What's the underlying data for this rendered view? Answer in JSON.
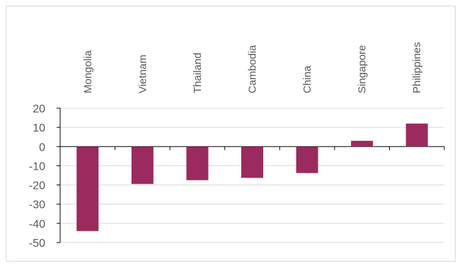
{
  "chart_data": {
    "type": "bar",
    "categories": [
      "Mongolia",
      "Vietnam",
      "Thailand",
      "Cambodia",
      "China",
      "Singapore",
      "Philippines"
    ],
    "values": [
      -44,
      -19.5,
      -17.5,
      -16.3,
      -13.8,
      3,
      12
    ],
    "ylim": [
      -50,
      20
    ],
    "yticks": [
      20,
      10,
      0,
      -10,
      -20,
      -30,
      -40,
      -50
    ],
    "ytick_labels": [
      "20",
      "10",
      "0",
      "-10",
      "-20",
      "-30",
      "-40",
      "-50"
    ],
    "grid": true,
    "category_labels_position": "top, rotated vertical",
    "bar_color": "#9B2A5E",
    "grid_color": "#d9d9d9",
    "axis_color": "#000000"
  }
}
